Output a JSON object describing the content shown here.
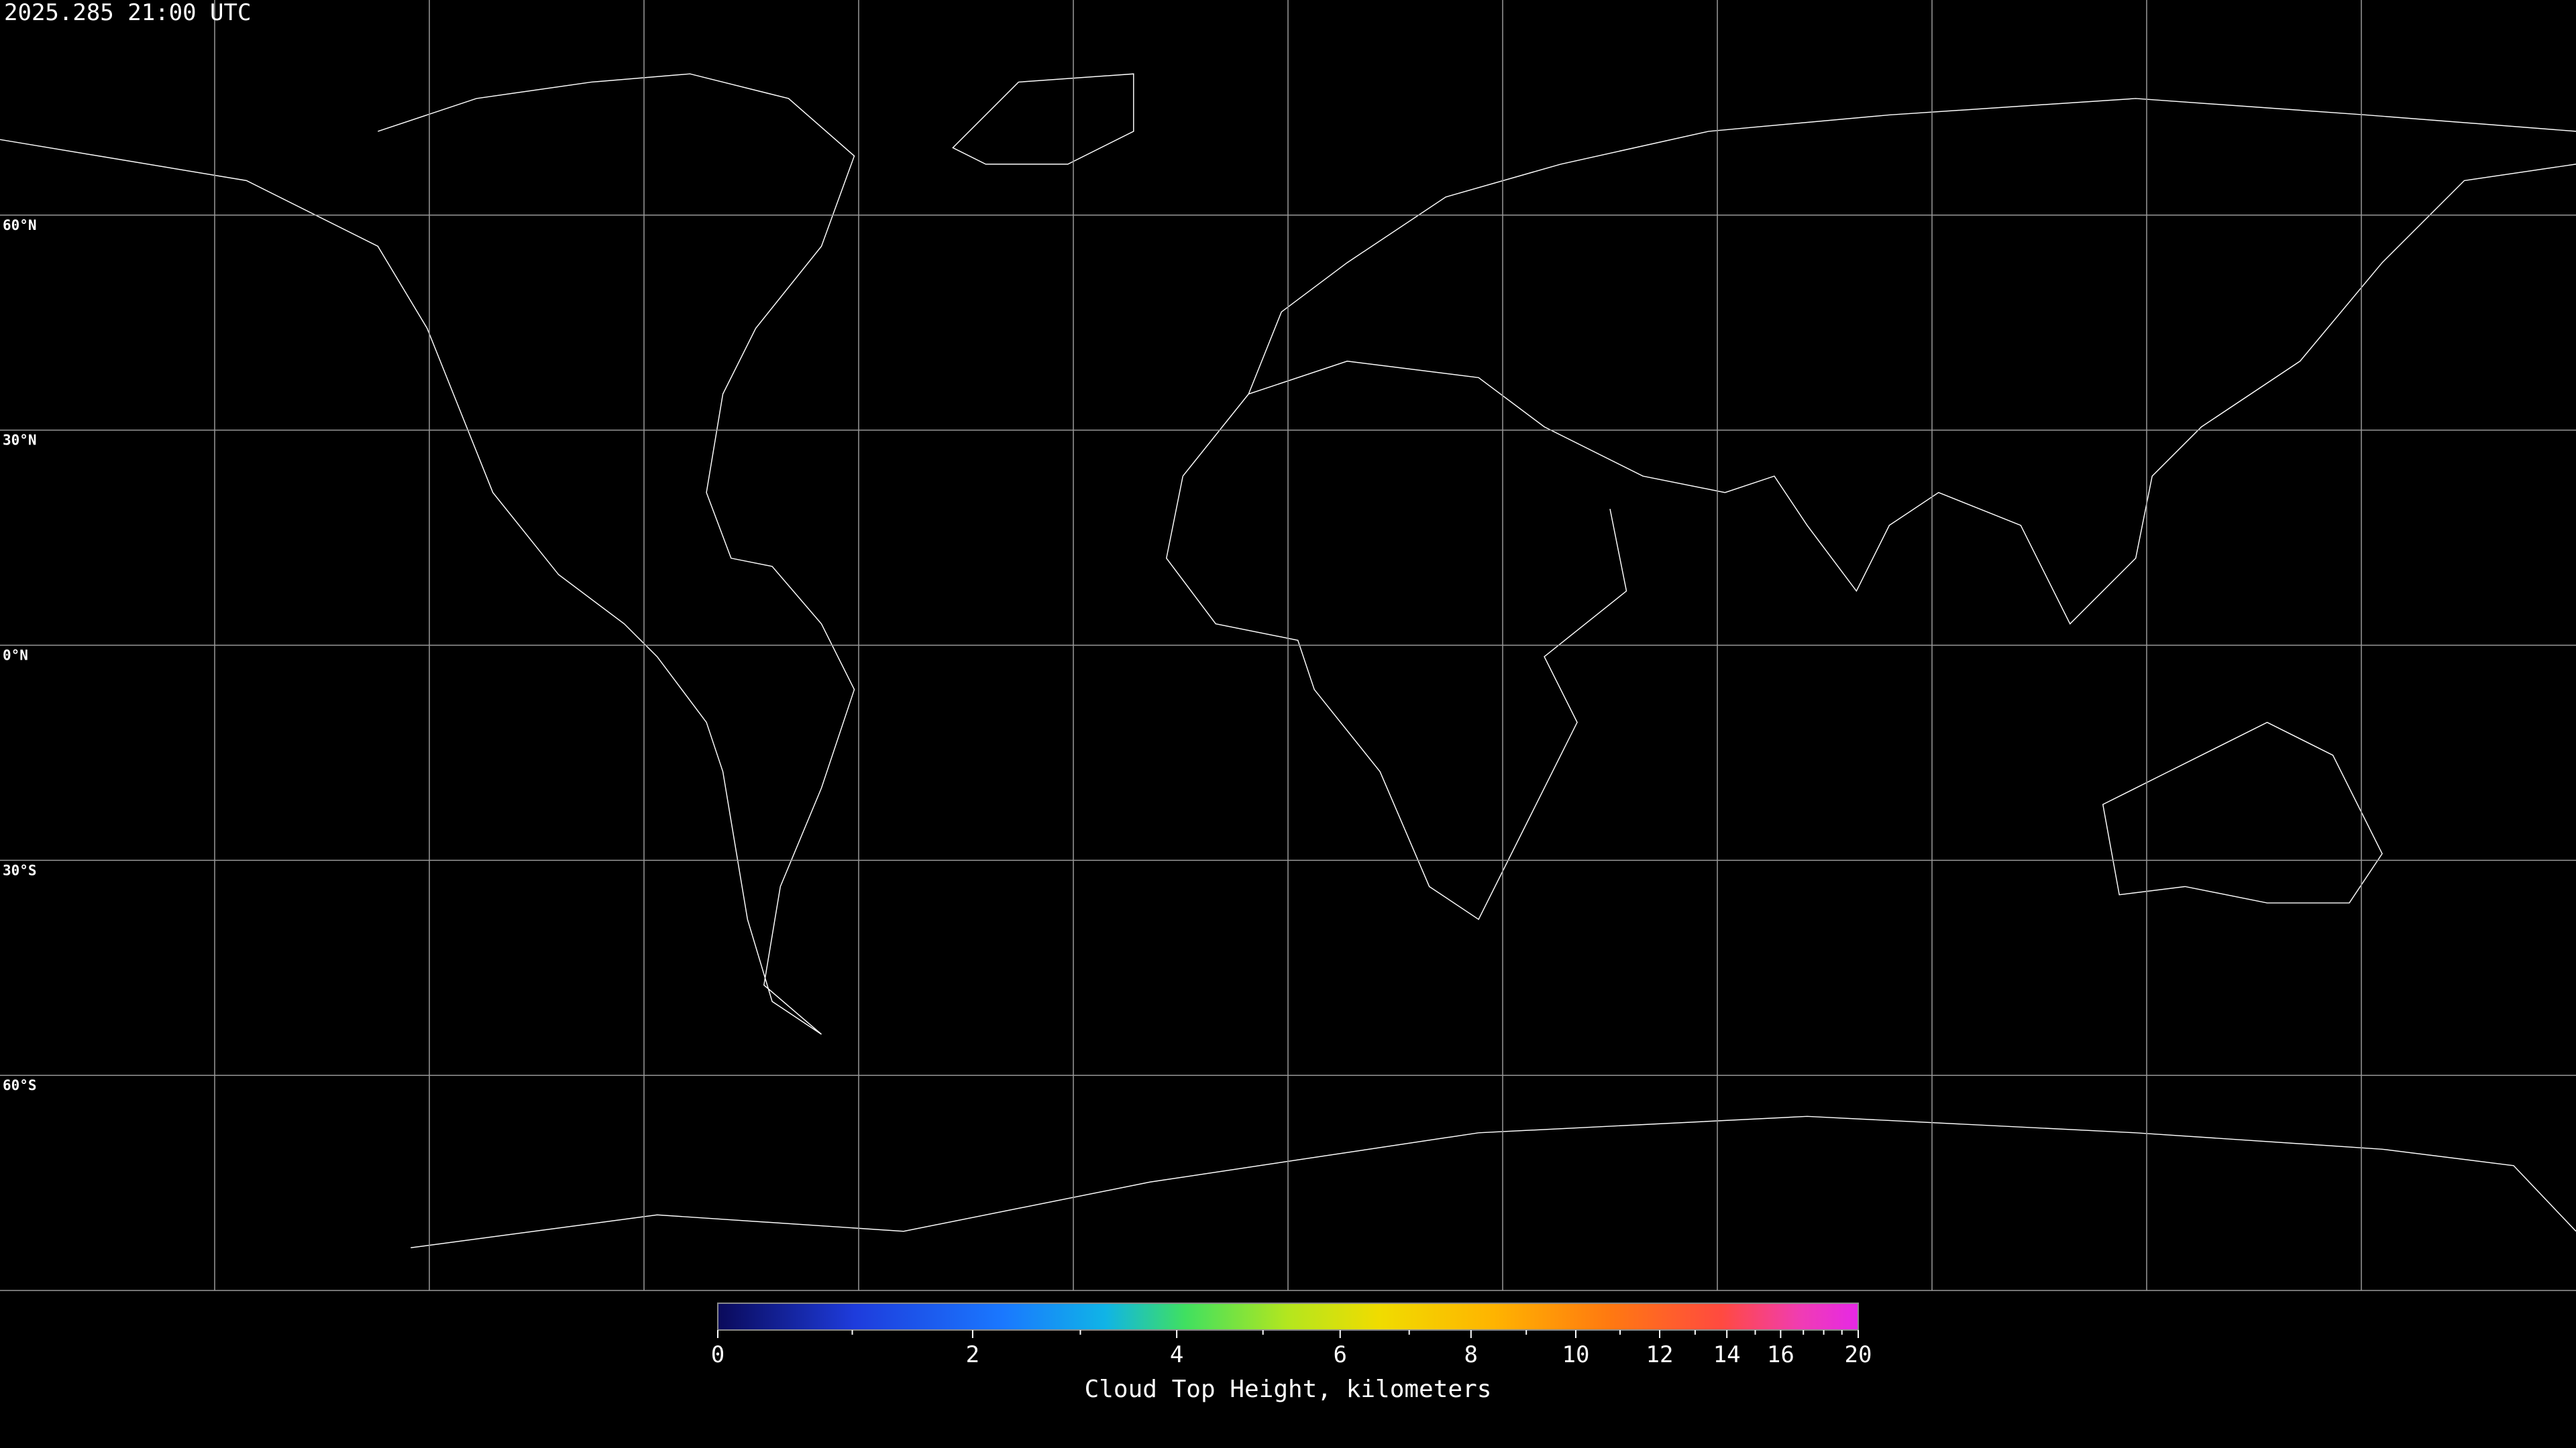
{
  "header": {
    "timestamp": "2025.285 21:00 UTC"
  },
  "map": {
    "latitudes": [
      {
        "value": 60,
        "label": "60°N"
      },
      {
        "value": 30,
        "label": "30°N"
      },
      {
        "value": 0,
        "label": "0°N"
      },
      {
        "value": -30,
        "label": "30°S"
      },
      {
        "value": -60,
        "label": "60°S"
      }
    ]
  },
  "colorbar": {
    "title": "Cloud Top Height, kilometers",
    "range": [
      0,
      20
    ],
    "ticks": [
      0,
      2,
      4,
      6,
      8,
      10,
      12,
      14,
      16,
      20
    ],
    "minor_ticks": [
      1,
      3,
      5,
      7,
      9,
      11,
      13,
      15,
      17,
      18,
      19
    ]
  }
}
